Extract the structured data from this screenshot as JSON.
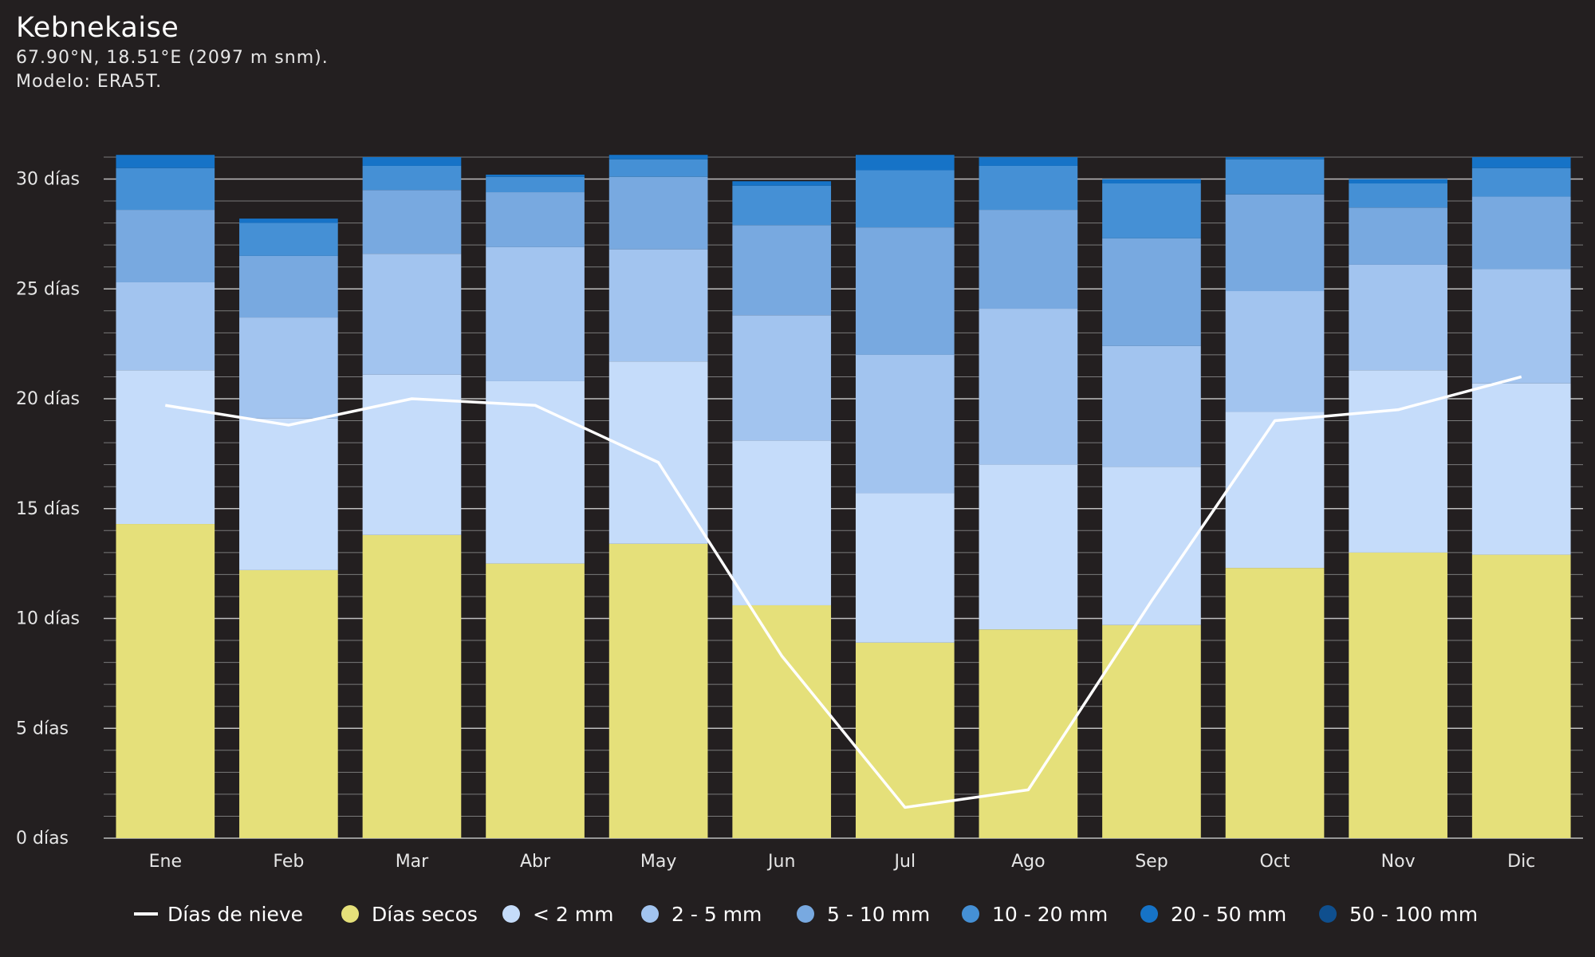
{
  "header": {
    "title": "Kebnekaise",
    "coords": "67.90°N, 18.51°E (2097 m snm).",
    "model": "Modelo: ERA5T."
  },
  "chart_data": {
    "type": "bar",
    "stacked": true,
    "categories": [
      "Ene",
      "Feb",
      "Mar",
      "Abr",
      "May",
      "Jun",
      "Jul",
      "Ago",
      "Sep",
      "Oct",
      "Nov",
      "Dic"
    ],
    "y_ticks": [
      "0 días",
      "5 días",
      "10 días",
      "15 días",
      "20 días",
      "25 días",
      "30 días"
    ],
    "ylim": [
      0,
      31
    ],
    "grid": true,
    "legend_position": "bottom",
    "series": [
      {
        "name": "Días secos",
        "color": "#e5e07a",
        "values": [
          14.3,
          12.2,
          13.8,
          12.5,
          13.4,
          10.6,
          8.9,
          9.5,
          9.7,
          12.3,
          13.0,
          12.9
        ]
      },
      {
        "name": "< 2 mm",
        "color": "#c5dcfa",
        "values": [
          7.0,
          6.9,
          7.3,
          8.3,
          8.3,
          7.5,
          6.8,
          7.5,
          7.2,
          7.1,
          8.3,
          7.8
        ]
      },
      {
        "name": "2 - 5 mm",
        "color": "#a2c4ef",
        "values": [
          4.0,
          4.6,
          5.5,
          6.1,
          5.1,
          5.7,
          6.3,
          7.1,
          5.5,
          5.5,
          4.8,
          5.2
        ]
      },
      {
        "name": "5 - 10 mm",
        "color": "#78a9e0",
        "values": [
          3.3,
          2.8,
          2.9,
          2.5,
          3.3,
          4.1,
          5.8,
          4.5,
          4.9,
          4.4,
          2.6,
          3.3
        ]
      },
      {
        "name": "10 - 20 mm",
        "color": "#4590d5",
        "values": [
          1.9,
          1.5,
          1.1,
          0.7,
          0.8,
          1.8,
          2.6,
          2.0,
          2.5,
          1.6,
          1.1,
          1.3
        ]
      },
      {
        "name": "20 - 50 mm",
        "color": "#1673c7",
        "values": [
          0.6,
          0.2,
          0.4,
          0.1,
          0.2,
          0.2,
          0.7,
          0.4,
          0.2,
          0.1,
          0.2,
          0.5
        ]
      },
      {
        "name": "50 - 100 mm",
        "color": "#0f4f8e",
        "values": [
          0.0,
          0.0,
          0.0,
          0.0,
          0.0,
          0.0,
          0.0,
          0.0,
          0.0,
          0.0,
          0.0,
          0.0
        ]
      }
    ],
    "line_series": {
      "name": "Días de nieve",
      "color": "#ffffff",
      "values": [
        19.7,
        18.8,
        20.0,
        19.7,
        17.1,
        8.3,
        1.4,
        2.2,
        10.8,
        19.0,
        19.5,
        21.0
      ]
    }
  }
}
